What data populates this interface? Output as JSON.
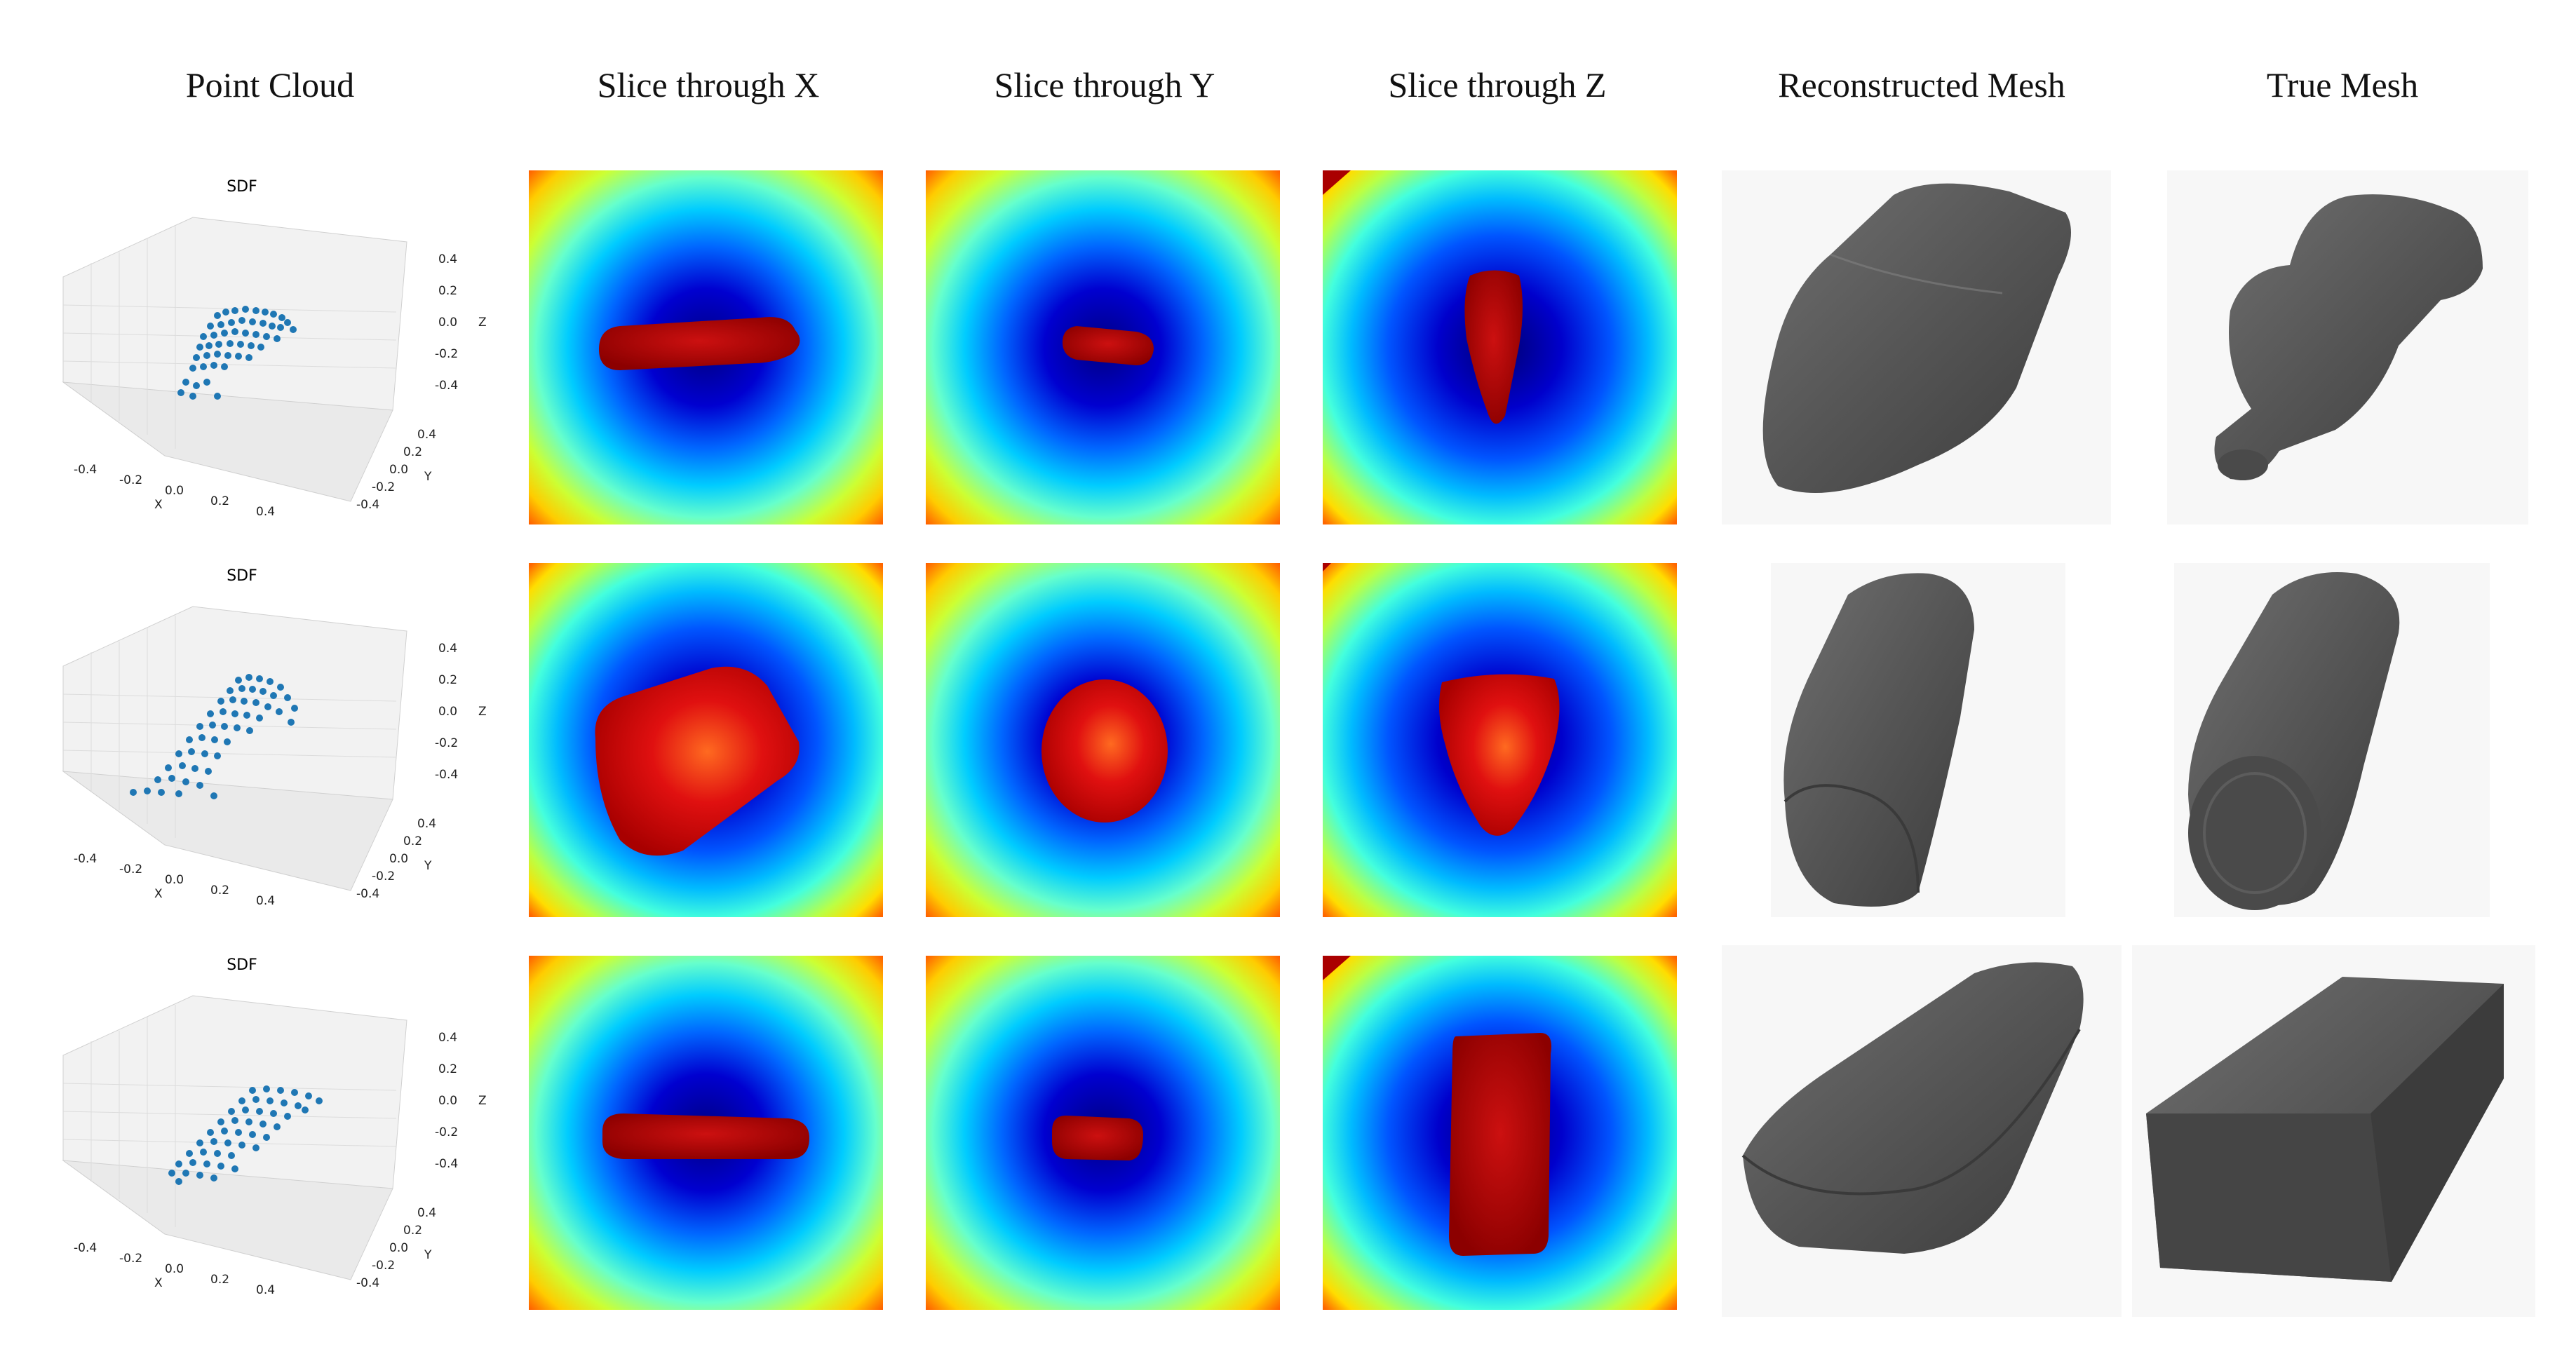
{
  "headers": {
    "point_cloud": "Point Cloud",
    "slice_x": "Slice through X",
    "slice_y": "Slice through Y",
    "slice_z": "Slice through Z",
    "reconstructed": "Reconstructed Mesh",
    "true_mesh": "True Mesh"
  },
  "plot": {
    "title": "SDF",
    "xlabel": "X",
    "ylabel": "Y",
    "zlabel": "Z",
    "x_ticks": [
      "-0.4",
      "-0.2",
      "0.0",
      "0.2",
      "0.4"
    ],
    "y_ticks": [
      "-0.4",
      "-0.2",
      "0.0",
      "0.2",
      "0.4"
    ],
    "z_ticks": [
      "-0.4",
      "-0.2",
      "0.0",
      "0.2",
      "0.4"
    ]
  },
  "colors": {
    "points": "#1f77b4",
    "mesh": "#555555",
    "mesh_bg": "#f7f7f7"
  },
  "colormap": "jet",
  "rows": 3
}
